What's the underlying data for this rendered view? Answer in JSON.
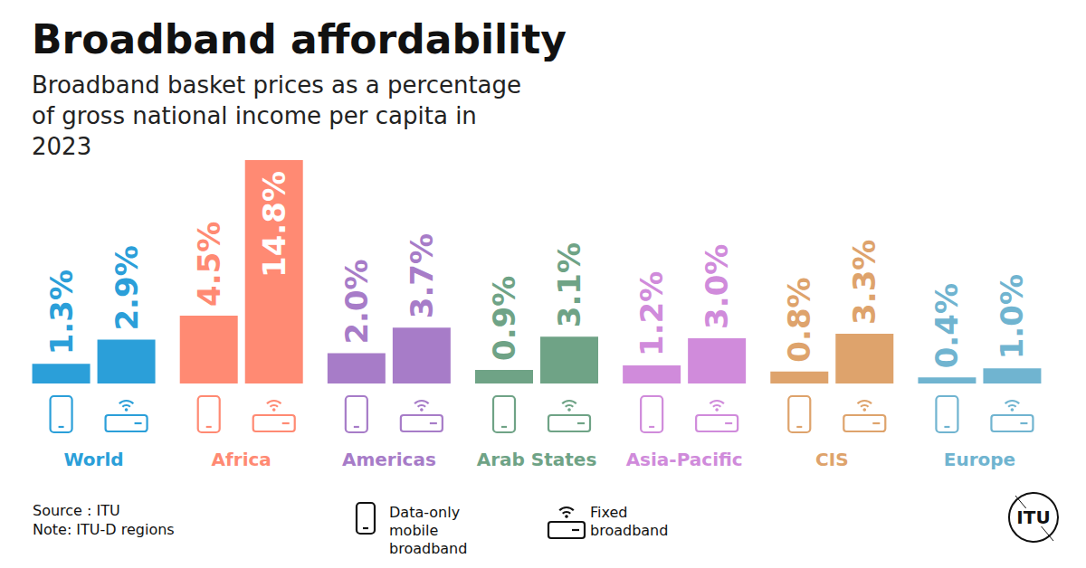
{
  "chart_data": {
    "type": "bar",
    "title": "Broadband affordability",
    "subtitle": "Broadband basket prices as a percentage of gross national income per capita in 2023",
    "categories": [
      "World",
      "Africa",
      "Americas",
      "Arab States",
      "Asia-Pacific",
      "CIS",
      "Europe"
    ],
    "series": [
      {
        "name": "Data-only mobile broadband",
        "marker": "phone",
        "colors": [
          "#2b9fd9",
          "#ff8a73",
          "#a77cc8",
          "#6fa386",
          "#d08bdb",
          "#dea36c",
          "#70b4d0"
        ],
        "values": [
          1.3,
          4.5,
          2.0,
          0.9,
          1.2,
          0.8,
          0.4
        ],
        "value_labels": [
          "1.3%",
          "4.5%",
          "2.0%",
          "0.9%",
          "1.2%",
          "0.8%",
          "0.4%"
        ]
      },
      {
        "name": "Fixed broadband",
        "marker": "router",
        "colors": [
          "#2b9fd9",
          "#ff8a73",
          "#a77cc8",
          "#6fa386",
          "#d08bdb",
          "#dea36c",
          "#70b4d0"
        ],
        "values": [
          2.9,
          14.8,
          3.7,
          3.1,
          3.0,
          3.3,
          1.0
        ],
        "value_labels": [
          "2.9%",
          "14.8%",
          "3.7%",
          "3.1%",
          "3.0%",
          "3.3%",
          "1.0%"
        ]
      }
    ],
    "ylim": [
      0,
      14.8
    ],
    "grid": false,
    "tick_labels": false,
    "data_labels": true,
    "legend": "bottom",
    "source": "Source : ITU",
    "note": "Note: ITU-D regions",
    "logo": "ITU"
  }
}
